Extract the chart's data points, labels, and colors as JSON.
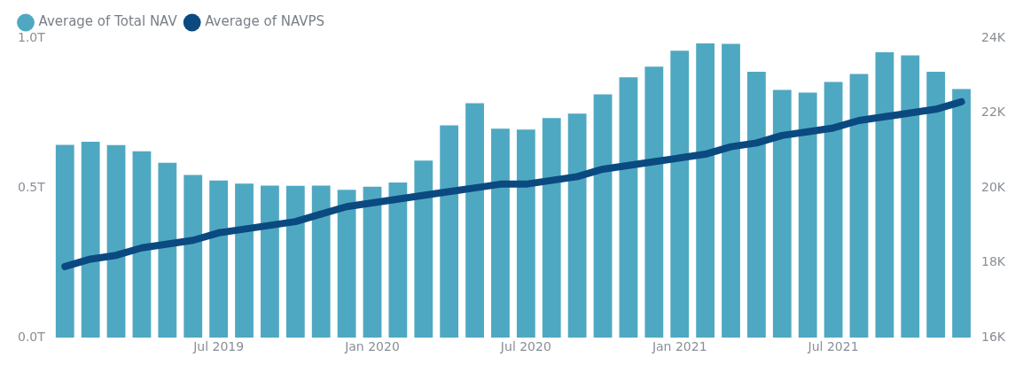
{
  "chart_data": {
    "type": "bar",
    "categories": [
      null,
      null,
      null,
      null,
      null,
      null,
      "Jul 2019",
      null,
      null,
      null,
      null,
      null,
      "Jan 2020",
      null,
      null,
      null,
      null,
      null,
      "Jul 2020",
      null,
      null,
      null,
      null,
      null,
      "Jan 2021",
      null,
      null,
      null,
      null,
      null,
      "Jul 2021",
      null,
      null,
      null,
      null,
      null
    ],
    "series": [
      {
        "name": "Average of Total NAV",
        "color": "#4fa8c2",
        "values": [
          0.644,
          0.654,
          0.643,
          0.622,
          0.584,
          0.543,
          0.525,
          0.514,
          0.508,
          0.507,
          0.508,
          0.494,
          0.504,
          0.518,
          0.591,
          0.709,
          0.783,
          0.698,
          0.695,
          0.733,
          0.748,
          0.812,
          0.869,
          0.905,
          0.958,
          0.982,
          0.981,
          0.888,
          0.827,
          0.818,
          0.854,
          0.88,
          0.953,
          0.942,
          0.888,
          0.83
        ]
      },
      {
        "name": "Average of NAVPS",
        "type": "line",
        "axis": "y2",
        "color": "#0b4a80",
        "values": [
          17900,
          18100,
          18200,
          18400,
          18500,
          18600,
          18800,
          18900,
          19000,
          19100,
          19300,
          19500,
          19600,
          19700,
          19800,
          19900,
          20000,
          20100,
          20100,
          20200,
          20300,
          20500,
          20600,
          20700,
          20800,
          20900,
          21100,
          21200,
          21400,
          21500,
          21600,
          21800,
          21900,
          22000,
          22100,
          22300
        ]
      }
    ],
    "ylim": [
      0,
      1
    ],
    "yticks": [
      {
        "value": 0,
        "label": "0.0T"
      },
      {
        "value": 0.5,
        "label": "0.5T"
      },
      {
        "value": 1,
        "label": "1.0T"
      }
    ],
    "y2lim": [
      16000,
      24000
    ],
    "y2ticks": [
      {
        "value": 16000,
        "label": "16K"
      },
      {
        "value": 18000,
        "label": "18K"
      },
      {
        "value": 20000,
        "label": "20K"
      },
      {
        "value": 22000,
        "label": "22K"
      },
      {
        "value": 24000,
        "label": "24K"
      }
    ],
    "grid": false,
    "legend": "top left",
    "marker": "none",
    "line_style": "solid"
  }
}
